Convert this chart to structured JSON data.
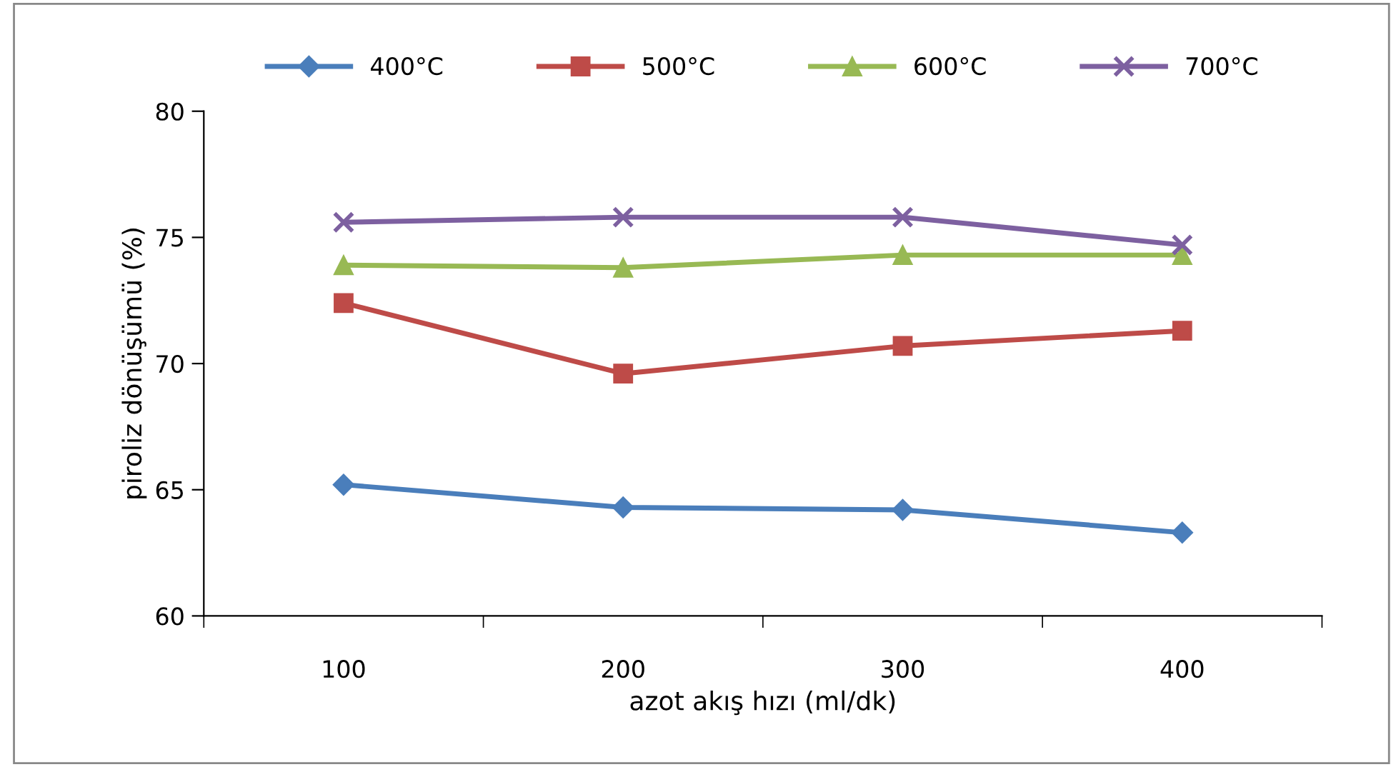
{
  "chart_data": {
    "type": "line",
    "xlabel": "azot akış hızı (ml/dk)",
    "ylabel": "piroliz dönüşümü (%)",
    "categories": [
      "100",
      "200",
      "300",
      "400"
    ],
    "series": [
      {
        "name": "400°C",
        "color": "#4a7ebb",
        "marker": "diamond",
        "values": [
          65.2,
          64.3,
          64.2,
          63.3
        ]
      },
      {
        "name": "500°C",
        "color": "#be4b48",
        "marker": "square",
        "values": [
          72.4,
          69.6,
          70.7,
          71.3
        ]
      },
      {
        "name": "600°C",
        "color": "#98b954",
        "marker": "triangle",
        "values": [
          73.9,
          73.8,
          74.3,
          74.3
        ]
      },
      {
        "name": "700°C",
        "color": "#7d60a0",
        "marker": "cross",
        "values": [
          75.6,
          75.8,
          75.8,
          74.7
        ]
      }
    ],
    "ylim": [
      60,
      80
    ],
    "yticks": [
      60,
      65,
      70,
      75,
      80
    ],
    "grid": false,
    "legend": "top",
    "line_style": "solid"
  }
}
